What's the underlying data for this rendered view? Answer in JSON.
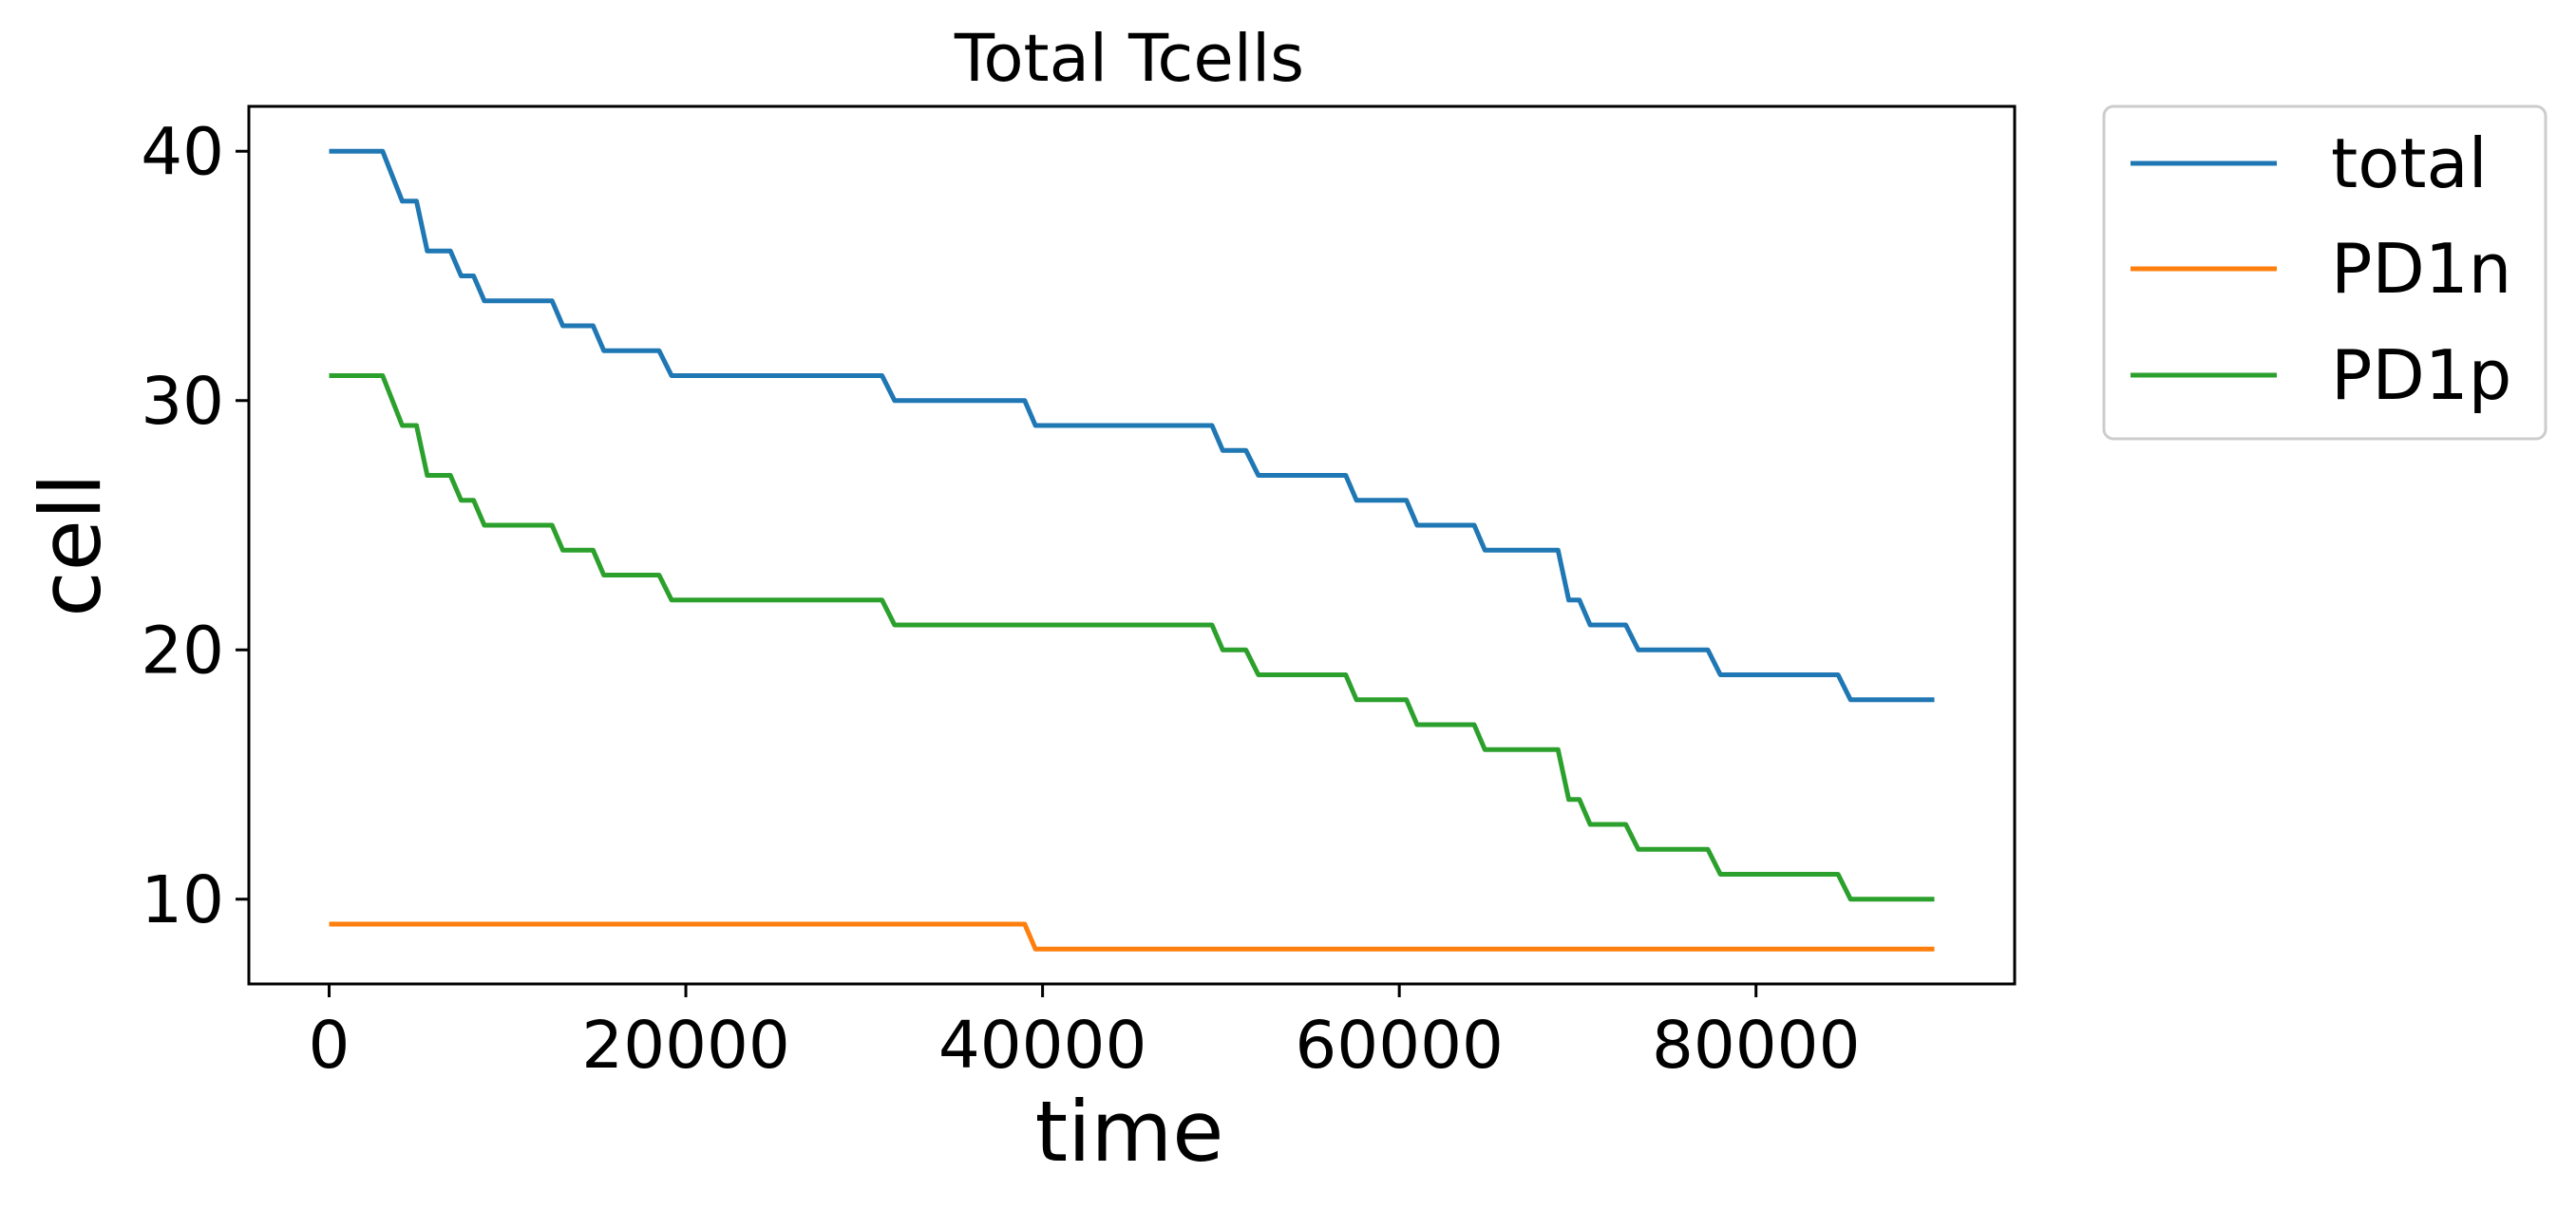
{
  "chart_data": {
    "type": "line",
    "title": "Total Tcells",
    "xlabel": "time",
    "ylabel": "cell",
    "xlim": [
      -4500,
      94500
    ],
    "ylim": [
      6.6,
      41.8
    ],
    "xticks": [
      0,
      20000,
      40000,
      60000,
      80000
    ],
    "yticks": [
      10,
      20,
      30,
      40
    ],
    "grid": false,
    "legend_position": "outside-top-right",
    "series": [
      {
        "name": "total",
        "color": "#1f77b4",
        "points": [
          [
            0,
            40
          ],
          [
            3000,
            40
          ],
          [
            4100,
            38
          ],
          [
            4900,
            38
          ],
          [
            5500,
            36
          ],
          [
            6800,
            36
          ],
          [
            7400,
            35
          ],
          [
            8100,
            35
          ],
          [
            8700,
            34
          ],
          [
            12500,
            34
          ],
          [
            13100,
            33
          ],
          [
            14800,
            33
          ],
          [
            15400,
            32
          ],
          [
            18500,
            32
          ],
          [
            19200,
            31
          ],
          [
            31000,
            31
          ],
          [
            31700,
            30
          ],
          [
            39000,
            30
          ],
          [
            39600,
            29
          ],
          [
            49500,
            29
          ],
          [
            50100,
            28
          ],
          [
            51400,
            28
          ],
          [
            52100,
            27
          ],
          [
            57000,
            27
          ],
          [
            57600,
            26
          ],
          [
            60400,
            26
          ],
          [
            61000,
            25
          ],
          [
            64200,
            25
          ],
          [
            64800,
            24
          ],
          [
            68900,
            24
          ],
          [
            69500,
            22
          ],
          [
            70100,
            22
          ],
          [
            70700,
            21
          ],
          [
            72700,
            21
          ],
          [
            73400,
            20
          ],
          [
            77300,
            20
          ],
          [
            78000,
            19
          ],
          [
            84600,
            19
          ],
          [
            85300,
            18
          ],
          [
            90000,
            18
          ]
        ]
      },
      {
        "name": "PD1n",
        "color": "#ff7f0e",
        "points": [
          [
            0,
            9
          ],
          [
            39000,
            9
          ],
          [
            39600,
            8
          ],
          [
            90000,
            8
          ]
        ]
      },
      {
        "name": "PD1p",
        "color": "#2ca02c",
        "points": [
          [
            0,
            31
          ],
          [
            3000,
            31
          ],
          [
            4100,
            29
          ],
          [
            4900,
            29
          ],
          [
            5500,
            27
          ],
          [
            6800,
            27
          ],
          [
            7400,
            26
          ],
          [
            8100,
            26
          ],
          [
            8700,
            25
          ],
          [
            12500,
            25
          ],
          [
            13100,
            24
          ],
          [
            14800,
            24
          ],
          [
            15400,
            23
          ],
          [
            18500,
            23
          ],
          [
            19200,
            22
          ],
          [
            31000,
            22
          ],
          [
            31700,
            21
          ],
          [
            49500,
            21
          ],
          [
            50100,
            20
          ],
          [
            51400,
            20
          ],
          [
            52100,
            19
          ],
          [
            57000,
            19
          ],
          [
            57600,
            18
          ],
          [
            60400,
            18
          ],
          [
            61000,
            17
          ],
          [
            64200,
            17
          ],
          [
            64800,
            16
          ],
          [
            68900,
            16
          ],
          [
            69500,
            14
          ],
          [
            70100,
            14
          ],
          [
            70700,
            13
          ],
          [
            72700,
            13
          ],
          [
            73400,
            12
          ],
          [
            77300,
            12
          ],
          [
            78000,
            11
          ],
          [
            84600,
            11
          ],
          [
            85300,
            10
          ],
          [
            90000,
            10
          ]
        ]
      }
    ]
  }
}
